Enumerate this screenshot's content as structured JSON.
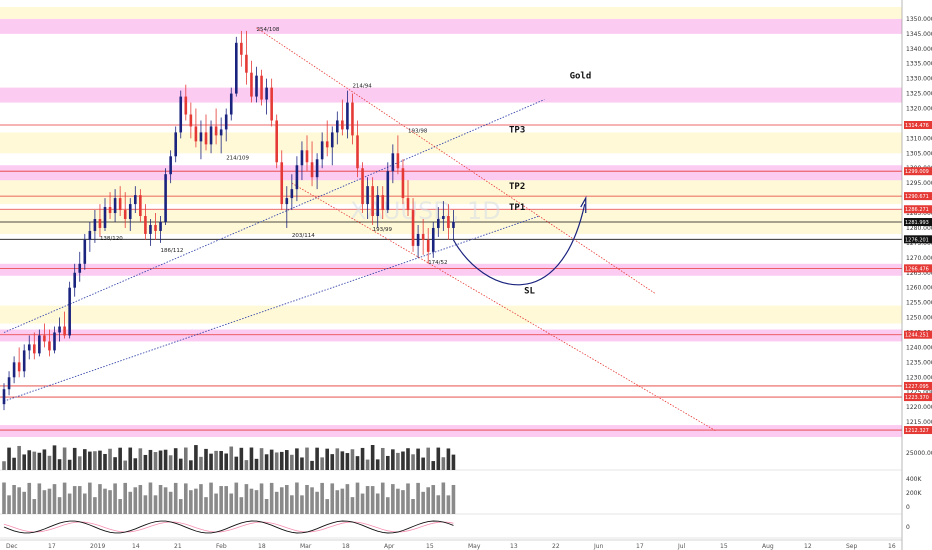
{
  "chart_data": {
    "type": "candlestick",
    "title": "Gold",
    "instrument_watermark": "XAUUSD, 1D",
    "y_range": [
      1210,
      1355
    ],
    "y_ticks": [
      1215,
      1220,
      1225,
      1230,
      1235,
      1240,
      1245,
      1250,
      1255,
      1260,
      1265,
      1270,
      1275,
      1280,
      1285,
      1290,
      1295,
      1300,
      1305,
      1310,
      1315,
      1320,
      1325,
      1330,
      1335,
      1340,
      1345,
      1350
    ],
    "x_ticks": [
      "Dec",
      "17",
      "2019",
      "14",
      "21",
      "Feb",
      "18",
      "Mar",
      "18",
      "Apr",
      "15",
      "May",
      "13",
      "22",
      "Jun",
      "17",
      "Jul",
      "15",
      "Aug",
      "12",
      "Sep",
      "16"
    ],
    "price_tags": [
      {
        "value": 1314.476,
        "label": "1314.476",
        "color": "#e53935"
      },
      {
        "value": 1299.009,
        "label": "1299.009",
        "color": "#e53935"
      },
      {
        "value": 1290.671,
        "label": "1290.671",
        "color": "#e53935"
      },
      {
        "value": 1286.271,
        "label": "1286.271",
        "color": "#e53935"
      },
      {
        "value": 1281.993,
        "label": "1281.993",
        "color": "#111111"
      },
      {
        "value": 1276.201,
        "label": "1276.201",
        "color": "#111111"
      },
      {
        "value": 1266.476,
        "label": "1266.476",
        "color": "#e53935"
      },
      {
        "value": 1244.251,
        "label": "1244.251",
        "color": "#e53935"
      },
      {
        "value": 1227.095,
        "label": "1227.095",
        "color": "#e53935"
      },
      {
        "value": 1223.37,
        "label": "1223.370",
        "color": "#e53935"
      },
      {
        "value": 1212.327,
        "label": "1212.327",
        "color": "#e53935"
      }
    ],
    "zones": [
      {
        "from": 1345,
        "to": 1350,
        "type": "resistance"
      },
      {
        "from": 1322,
        "to": 1327,
        "type": "resistance"
      },
      {
        "from": 1296,
        "to": 1301,
        "type": "resistance"
      },
      {
        "from": 1264,
        "to": 1268,
        "type": "support"
      },
      {
        "from": 1242,
        "to": 1246,
        "type": "support"
      },
      {
        "from": 1210,
        "to": 1214,
        "type": "support"
      }
    ],
    "light_zones": [
      {
        "from": 1350,
        "to": 1354
      },
      {
        "from": 1305,
        "to": 1312
      },
      {
        "from": 1288,
        "to": 1296
      },
      {
        "from": 1278,
        "to": 1286
      },
      {
        "from": 1248,
        "to": 1254
      }
    ],
    "annotations": [
      {
        "text": "Gold",
        "x_index": 112,
        "y": 1330
      },
      {
        "text": "TP3",
        "x_index": 100,
        "y": 1312
      },
      {
        "text": "TP2",
        "x_index": 100,
        "y": 1293
      },
      {
        "text": "TP1",
        "x_index": 100,
        "y": 1286
      },
      {
        "text": "SL",
        "x_index": 103,
        "y": 1258
      }
    ],
    "swing_labels": [
      {
        "text": "254/108",
        "x_index": 50,
        "y": 1346
      },
      {
        "text": "214/94",
        "x_index": 69,
        "y": 1327
      },
      {
        "text": "193/98",
        "x_index": 80,
        "y": 1312
      },
      {
        "text": "214/109",
        "x_index": 44,
        "y": 1303
      },
      {
        "text": "138/120",
        "x_index": 19,
        "y": 1276
      },
      {
        "text": "186/112",
        "x_index": 31,
        "y": 1272
      },
      {
        "text": "203/114",
        "x_index": 57,
        "y": 1277
      },
      {
        "text": "193/99",
        "x_index": 73,
        "y": 1279
      },
      {
        "text": "174/52",
        "x_index": 84,
        "y": 1268
      }
    ],
    "volume_axis": [
      "25000.00"
    ],
    "osc1_axis": [
      "400K",
      "200K",
      "0"
    ],
    "osc2_axis": [
      "0"
    ],
    "candles": [
      [
        1221,
        1228,
        1219,
        1226
      ],
      [
        1226,
        1232,
        1224,
        1230
      ],
      [
        1230,
        1237,
        1228,
        1235
      ],
      [
        1235,
        1240,
        1230,
        1232
      ],
      [
        1232,
        1241,
        1230,
        1239
      ],
      [
        1239,
        1244,
        1236,
        1241
      ],
      [
        1241,
        1245,
        1236,
        1238
      ],
      [
        1238,
        1246,
        1237,
        1244
      ],
      [
        1244,
        1248,
        1240,
        1242
      ],
      [
        1242,
        1246,
        1237,
        1239
      ],
      [
        1239,
        1247,
        1238,
        1245
      ],
      [
        1245,
        1250,
        1242,
        1247
      ],
      [
        1247,
        1252,
        1243,
        1244
      ],
      [
        1244,
        1262,
        1243,
        1260
      ],
      [
        1260,
        1268,
        1257,
        1265
      ],
      [
        1265,
        1272,
        1262,
        1268
      ],
      [
        1268,
        1278,
        1266,
        1276
      ],
      [
        1276,
        1282,
        1272,
        1279
      ],
      [
        1279,
        1286,
        1275,
        1283
      ],
      [
        1283,
        1288,
        1277,
        1280
      ],
      [
        1280,
        1290,
        1279,
        1287
      ],
      [
        1287,
        1292,
        1283,
        1285
      ],
      [
        1285,
        1293,
        1282,
        1290
      ],
      [
        1290,
        1294,
        1284,
        1286
      ],
      [
        1286,
        1292,
        1280,
        1283
      ],
      [
        1283,
        1290,
        1279,
        1288
      ],
      [
        1288,
        1294,
        1285,
        1291
      ],
      [
        1291,
        1293,
        1282,
        1284
      ],
      [
        1284,
        1288,
        1276,
        1278
      ],
      [
        1278,
        1283,
        1274,
        1281
      ],
      [
        1281,
        1285,
        1276,
        1279
      ],
      [
        1279,
        1284,
        1275,
        1282
      ],
      [
        1282,
        1300,
        1281,
        1298
      ],
      [
        1298,
        1306,
        1295,
        1304
      ],
      [
        1304,
        1314,
        1302,
        1312
      ],
      [
        1312,
        1326,
        1310,
        1324
      ],
      [
        1324,
        1328,
        1316,
        1318
      ],
      [
        1318,
        1322,
        1310,
        1314
      ],
      [
        1314,
        1320,
        1307,
        1309
      ],
      [
        1309,
        1316,
        1303,
        1312
      ],
      [
        1312,
        1318,
        1306,
        1308
      ],
      [
        1308,
        1316,
        1305,
        1314
      ],
      [
        1314,
        1320,
        1308,
        1311
      ],
      [
        1311,
        1317,
        1305,
        1313
      ],
      [
        1313,
        1320,
        1309,
        1318
      ],
      [
        1318,
        1327,
        1316,
        1325
      ],
      [
        1325,
        1344,
        1324,
        1342
      ],
      [
        1342,
        1346,
        1334,
        1338
      ],
      [
        1338,
        1346,
        1328,
        1332
      ],
      [
        1332,
        1336,
        1322,
        1324
      ],
      [
        1324,
        1334,
        1322,
        1331
      ],
      [
        1331,
        1333,
        1321,
        1323
      ],
      [
        1323,
        1330,
        1318,
        1327
      ],
      [
        1327,
        1330,
        1314,
        1316
      ],
      [
        1316,
        1318,
        1300,
        1302
      ],
      [
        1302,
        1306,
        1286,
        1288
      ],
      [
        1288,
        1294,
        1280,
        1290
      ],
      [
        1290,
        1298,
        1286,
        1293
      ],
      [
        1293,
        1304,
        1289,
        1301
      ],
      [
        1301,
        1309,
        1296,
        1306
      ],
      [
        1306,
        1311,
        1299,
        1302
      ],
      [
        1302,
        1309,
        1294,
        1297
      ],
      [
        1297,
        1305,
        1293,
        1303
      ],
      [
        1303,
        1312,
        1300,
        1309
      ],
      [
        1309,
        1316,
        1304,
        1307
      ],
      [
        1307,
        1314,
        1301,
        1312
      ],
      [
        1312,
        1319,
        1308,
        1316
      ],
      [
        1316,
        1323,
        1311,
        1313
      ],
      [
        1313,
        1326,
        1310,
        1322
      ],
      [
        1322,
        1325,
        1308,
        1311
      ],
      [
        1311,
        1316,
        1297,
        1300
      ],
      [
        1300,
        1302,
        1285,
        1288
      ],
      [
        1288,
        1297,
        1283,
        1294
      ],
      [
        1294,
        1297,
        1281,
        1284
      ],
      [
        1284,
        1294,
        1280,
        1291
      ],
      [
        1291,
        1294,
        1283,
        1286
      ],
      [
        1286,
        1302,
        1285,
        1299
      ],
      [
        1299,
        1308,
        1295,
        1305
      ],
      [
        1305,
        1311,
        1298,
        1300
      ],
      [
        1300,
        1303,
        1288,
        1290
      ],
      [
        1290,
        1296,
        1284,
        1286
      ],
      [
        1286,
        1290,
        1272,
        1274
      ],
      [
        1274,
        1281,
        1270,
        1278
      ],
      [
        1278,
        1283,
        1271,
        1276
      ],
      [
        1276,
        1280,
        1268,
        1272
      ],
      [
        1272,
        1282,
        1270,
        1280
      ],
      [
        1280,
        1287,
        1277,
        1283
      ],
      [
        1283,
        1289,
        1279,
        1284
      ],
      [
        1284,
        1288,
        1276,
        1280
      ],
      [
        1280,
        1286,
        1276,
        1282
      ]
    ]
  }
}
